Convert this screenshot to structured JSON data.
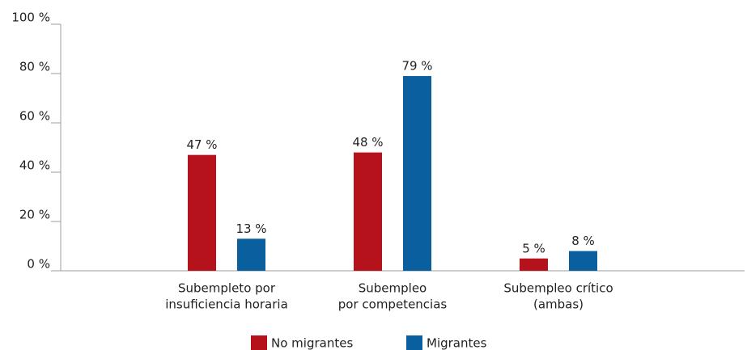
{
  "chart_data": {
    "type": "bar",
    "categories": [
      [
        "Subempleto por",
        "insuficiencia horaria"
      ],
      [
        "Subempleo",
        "por competencias"
      ],
      [
        "Subempleo crítico",
        "(ambas)"
      ]
    ],
    "series": [
      {
        "name": "No migrantes",
        "color": "#b5121b",
        "values": [
          47,
          48,
          5
        ],
        "value_labels": [
          "47 %",
          "48 %",
          "5 %"
        ]
      },
      {
        "name": "Migrantes",
        "color": "#0a5f9e",
        "values": [
          13,
          79,
          8
        ],
        "value_labels": [
          "13 %",
          "79 %",
          "8 %"
        ]
      }
    ],
    "ylim": [
      0,
      100
    ],
    "yticks": [
      {
        "value": 0,
        "label": "0 %"
      },
      {
        "value": 20,
        "label": "20 %"
      },
      {
        "value": 40,
        "label": "40 %"
      },
      {
        "value": 60,
        "label": "60 %"
      },
      {
        "value": 80,
        "label": "80 %"
      },
      {
        "value": 100,
        "label": "100 %"
      }
    ],
    "grid": false
  }
}
